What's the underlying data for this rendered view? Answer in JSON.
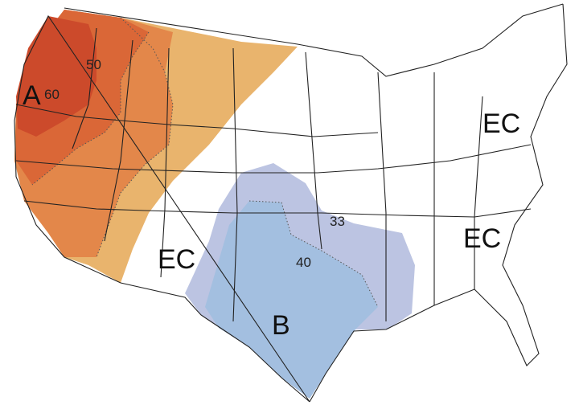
{
  "labels": [
    "A",
    "60",
    "50",
    "EC",
    "EC",
    "EC",
    "33",
    "40",
    "B"
  ]
}
